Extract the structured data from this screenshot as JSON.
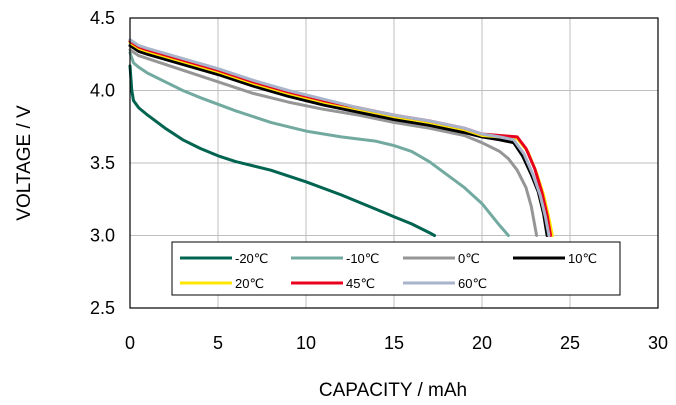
{
  "chart_data": {
    "type": "line",
    "xlabel": "CAPACITY / mAh",
    "ylabel": "VOLTAGE / V",
    "xlim": [
      0,
      30
    ],
    "ylim": [
      2.5,
      4.5
    ],
    "xticks": [
      "0",
      "5",
      "10",
      "15",
      "20",
      "25",
      "30"
    ],
    "yticks": [
      "2.5",
      "3.0",
      "3.5",
      "4.0",
      "4.5"
    ],
    "grid": true,
    "legend_position": "bottom",
    "series": [
      {
        "name": "-20℃",
        "color": "#006450",
        "x": [
          0,
          0.1,
          0.2,
          0.5,
          1,
          2,
          3,
          4,
          5,
          6,
          8,
          10,
          12,
          14,
          15,
          16,
          17,
          17.3
        ],
        "y": [
          4.17,
          4.0,
          3.93,
          3.88,
          3.83,
          3.74,
          3.66,
          3.6,
          3.55,
          3.51,
          3.45,
          3.37,
          3.28,
          3.18,
          3.13,
          3.08,
          3.02,
          3.0
        ]
      },
      {
        "name": "-10℃",
        "color": "#72aaa0",
        "x": [
          0,
          0.2,
          0.5,
          1,
          2,
          3,
          4,
          6,
          8,
          10,
          12,
          14,
          15,
          16,
          17,
          18,
          19,
          20,
          21,
          21.5
        ],
        "y": [
          4.26,
          4.19,
          4.16,
          4.12,
          4.06,
          4.0,
          3.95,
          3.86,
          3.78,
          3.72,
          3.68,
          3.65,
          3.62,
          3.58,
          3.51,
          3.42,
          3.33,
          3.22,
          3.07,
          3.0
        ]
      },
      {
        "name": "0℃",
        "color": "#969696",
        "x": [
          0,
          0.5,
          1,
          3,
          5,
          7,
          9,
          11,
          13,
          15,
          17,
          19,
          20,
          21,
          21.5,
          22,
          22.5,
          22.8,
          23.1
        ],
        "y": [
          4.28,
          4.24,
          4.22,
          4.14,
          4.06,
          3.98,
          3.92,
          3.87,
          3.83,
          3.78,
          3.74,
          3.69,
          3.64,
          3.58,
          3.53,
          3.45,
          3.33,
          3.2,
          3.0
        ]
      },
      {
        "name": "10℃",
        "color": "#000000",
        "x": [
          0,
          0.5,
          1,
          3,
          5,
          7,
          9,
          11,
          13,
          15,
          17,
          19,
          20,
          21,
          21.8,
          22.3,
          22.8,
          23.2,
          23.5,
          23.7
        ],
        "y": [
          4.31,
          4.27,
          4.25,
          4.18,
          4.11,
          4.03,
          3.96,
          3.9,
          3.85,
          3.8,
          3.76,
          3.71,
          3.68,
          3.66,
          3.64,
          3.55,
          3.42,
          3.3,
          3.15,
          3.0
        ]
      },
      {
        "name": "20℃",
        "color": "#ffe600",
        "x": [
          0,
          0.5,
          1,
          3,
          5,
          7,
          9,
          11,
          13,
          15,
          17,
          19,
          20,
          21,
          22,
          22.6,
          23.1,
          23.5,
          23.8,
          24.0
        ],
        "y": [
          4.33,
          4.29,
          4.27,
          4.2,
          4.13,
          4.05,
          3.98,
          3.92,
          3.87,
          3.82,
          3.78,
          3.73,
          3.69,
          3.68,
          3.67,
          3.58,
          3.43,
          3.28,
          3.12,
          3.0
        ]
      },
      {
        "name": "45℃",
        "color": "#e8001e",
        "x": [
          0,
          0.5,
          1,
          3,
          5,
          7,
          9,
          11,
          13,
          15,
          17,
          19,
          20,
          21,
          22,
          22.5,
          23,
          23.4,
          23.7,
          23.9
        ],
        "y": [
          4.34,
          4.3,
          4.28,
          4.21,
          4.14,
          4.06,
          3.99,
          3.93,
          3.88,
          3.83,
          3.79,
          3.74,
          3.7,
          3.69,
          3.68,
          3.6,
          3.46,
          3.3,
          3.14,
          3.0
        ]
      },
      {
        "name": "60℃",
        "color": "#a9b4cb",
        "x": [
          0,
          0.5,
          1,
          3,
          5,
          7,
          9,
          11,
          13,
          15,
          17,
          19,
          20,
          21,
          21.8,
          22.4,
          22.9,
          23.3,
          23.6,
          23.8
        ],
        "y": [
          4.35,
          4.31,
          4.29,
          4.22,
          4.15,
          4.07,
          4.0,
          3.94,
          3.88,
          3.83,
          3.79,
          3.74,
          3.7,
          3.68,
          3.66,
          3.56,
          3.42,
          3.28,
          3.13,
          3.0
        ]
      }
    ]
  }
}
